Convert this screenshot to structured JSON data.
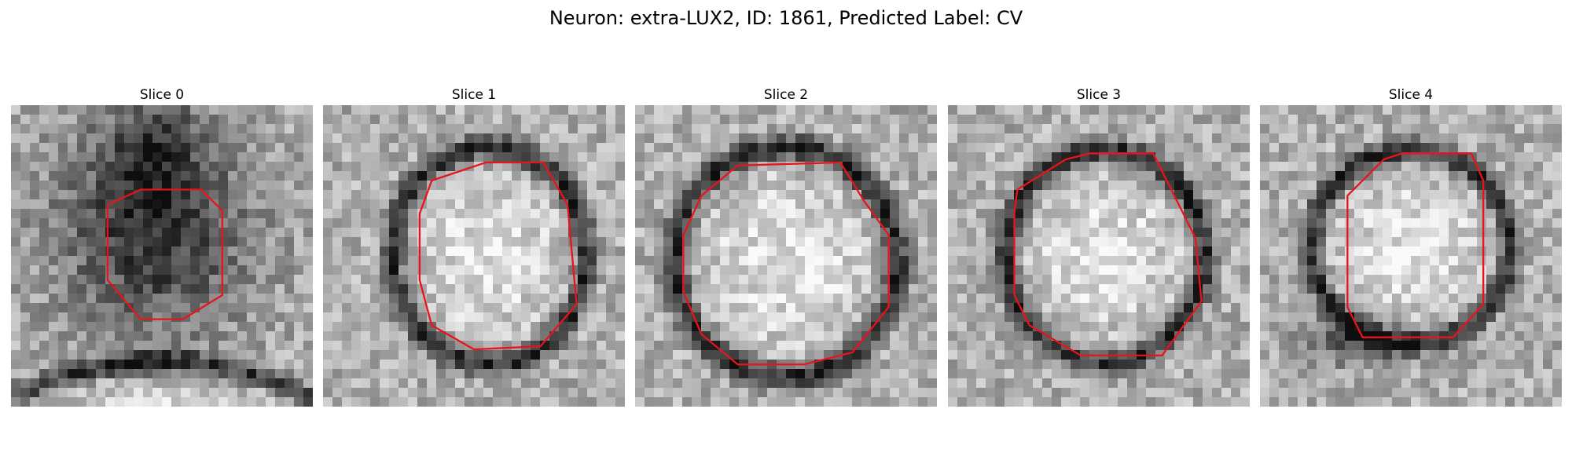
{
  "figure": {
    "title": "Neuron: extra-LUX2, ID: 1861, Predicted Label: CV"
  },
  "colors": {
    "contour": "#e8141b",
    "background": "#ffffff"
  },
  "slices": [
    {
      "title": "Slice 0",
      "style": "dark-center",
      "contour_points": [
        [
          0.32,
          0.33
        ],
        [
          0.43,
          0.28
        ],
        [
          0.63,
          0.28
        ],
        [
          0.7,
          0.35
        ],
        [
          0.7,
          0.63
        ],
        [
          0.57,
          0.71
        ],
        [
          0.43,
          0.71
        ],
        [
          0.32,
          0.58
        ]
      ]
    },
    {
      "title": "Slice 1",
      "style": "bright-center",
      "contour_points": [
        [
          0.36,
          0.25
        ],
        [
          0.54,
          0.19
        ],
        [
          0.73,
          0.19
        ],
        [
          0.81,
          0.33
        ],
        [
          0.84,
          0.66
        ],
        [
          0.72,
          0.8
        ],
        [
          0.5,
          0.81
        ],
        [
          0.36,
          0.73
        ],
        [
          0.32,
          0.58
        ],
        [
          0.32,
          0.36
        ]
      ]
    },
    {
      "title": "Slice 2",
      "style": "bright-center",
      "contour_points": [
        [
          0.22,
          0.3
        ],
        [
          0.34,
          0.2
        ],
        [
          0.68,
          0.19
        ],
        [
          0.76,
          0.32
        ],
        [
          0.84,
          0.43
        ],
        [
          0.84,
          0.67
        ],
        [
          0.72,
          0.82
        ],
        [
          0.56,
          0.86
        ],
        [
          0.34,
          0.86
        ],
        [
          0.22,
          0.76
        ],
        [
          0.16,
          0.62
        ],
        [
          0.16,
          0.43
        ]
      ]
    },
    {
      "title": "Slice 3",
      "style": "bright-center",
      "contour_points": [
        [
          0.23,
          0.28
        ],
        [
          0.39,
          0.18
        ],
        [
          0.47,
          0.16
        ],
        [
          0.68,
          0.16
        ],
        [
          0.76,
          0.32
        ],
        [
          0.82,
          0.44
        ],
        [
          0.84,
          0.65
        ],
        [
          0.71,
          0.83
        ],
        [
          0.44,
          0.83
        ],
        [
          0.27,
          0.73
        ],
        [
          0.22,
          0.63
        ],
        [
          0.22,
          0.36
        ]
      ]
    },
    {
      "title": "Slice 4",
      "style": "bright-center",
      "contour_points": [
        [
          0.29,
          0.3
        ],
        [
          0.41,
          0.18
        ],
        [
          0.47,
          0.16
        ],
        [
          0.7,
          0.16
        ],
        [
          0.74,
          0.25
        ],
        [
          0.74,
          0.66
        ],
        [
          0.64,
          0.77
        ],
        [
          0.34,
          0.77
        ],
        [
          0.29,
          0.67
        ]
      ]
    }
  ]
}
